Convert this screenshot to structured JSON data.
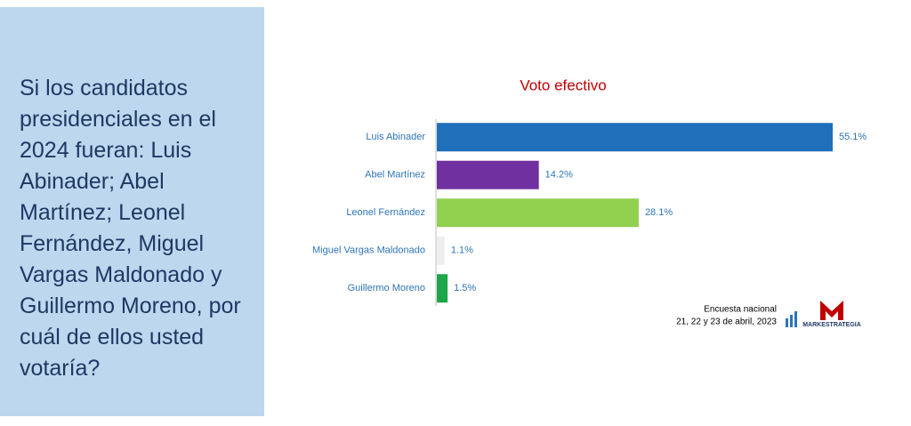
{
  "question": "Si los candidatos presidenciales en el 2024 fueran: Luis Abinader; Abel Martínez; Leonel Fernández, Miguel Vargas Maldonado y Guillermo Moreno, por cuál de ellos usted votaría?",
  "chart_data": {
    "type": "bar",
    "orientation": "horizontal",
    "title": "Voto efectivo",
    "categories": [
      "Luis Abinader",
      "Abel Martínez",
      "Leonel Fernández",
      "Miguel Vargas Maldonado",
      "Guillermo Moreno"
    ],
    "values": [
      55.1,
      14.2,
      28.1,
      1.1,
      1.5
    ],
    "value_labels": [
      "55.1%",
      "14.2%",
      "28.1%",
      "1.1%",
      "1.5%"
    ],
    "colors": [
      "#1f6fba",
      "#7030a0",
      "#92d050",
      "#eeeeee",
      "#1fa64a"
    ]
  },
  "source": {
    "line1": "Encuesta nacional",
    "line2": "21, 22 y 23 de abril, 2023"
  },
  "logo": {
    "name": "MARKESTRATEGIA"
  }
}
